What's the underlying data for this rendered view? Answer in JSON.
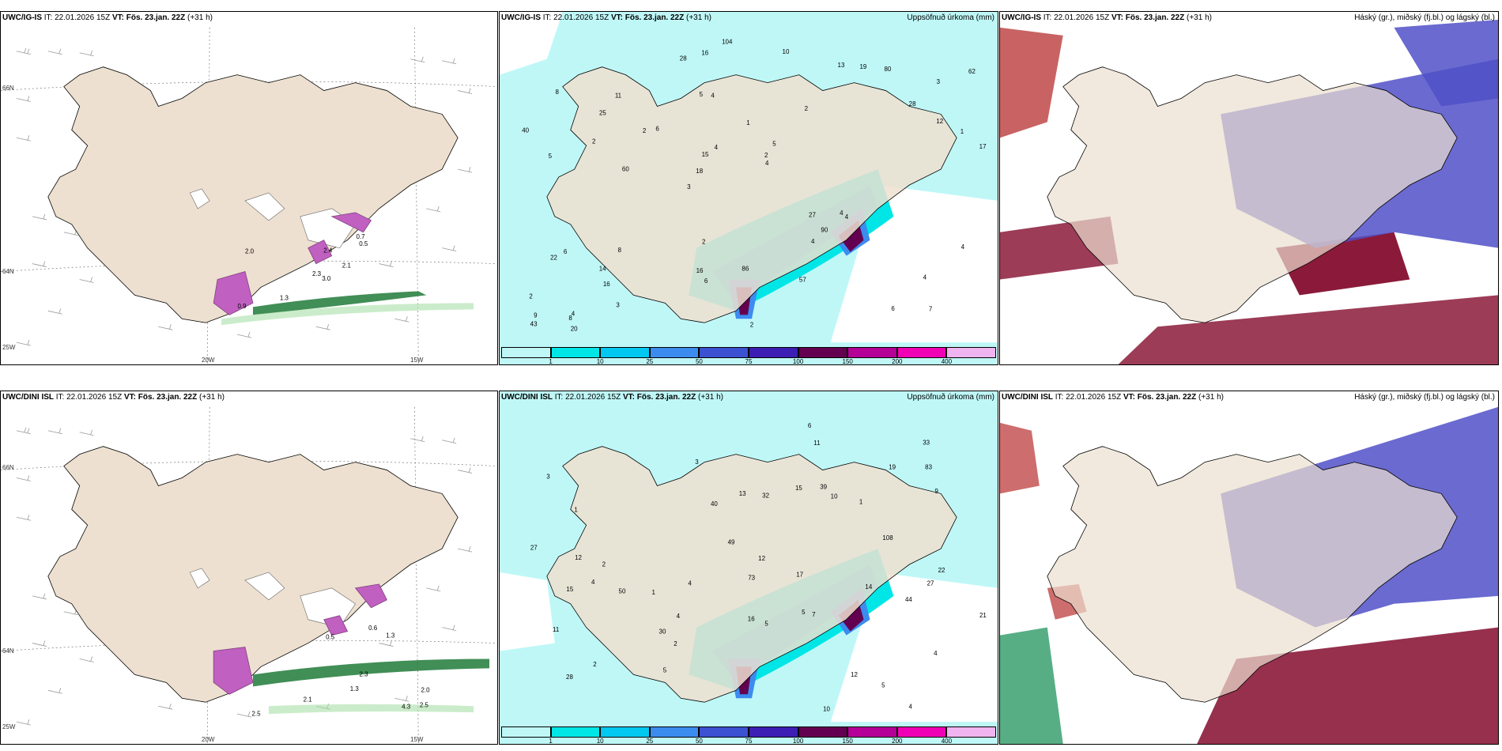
{
  "panels": {
    "top_left": {
      "model": "UWC/IG-IS",
      "it": "IT: 22.01.2026 15Z",
      "vt": "VT: Fös. 23.jan. 22Z",
      "lead": "(+31 h)",
      "axes": {
        "lat_top": "66N",
        "lat_bot": "64N",
        "lon_left": "25W",
        "lon_mid": "20W",
        "lon_right": "15W"
      }
    },
    "top_mid": {
      "model": "UWC/IG-IS",
      "it": "IT: 22.01.2026 15Z",
      "vt": "VT: Fös. 23.jan. 22Z",
      "lead": "(+31 h)",
      "right_label": "Uppsöfnuð úrkoma (mm)"
    },
    "top_right": {
      "model": "UWC/IG-IS",
      "it": "IT: 22.01.2026 15Z",
      "vt": "VT: Fös. 23.jan. 22Z",
      "lead": "(+31 h)",
      "right_label": "Háský (gr.), miðský (fj.bl.) og lágský (bl.)"
    },
    "bot_left": {
      "model": "UWC/DINI ISL",
      "it": "IT: 22.01.2026 15Z",
      "vt": "VT: Fös. 23.jan. 22Z",
      "lead": "(+31 h)",
      "axes": {
        "lat_top": "66N",
        "lat_bot": "64N",
        "lon_left": "25W",
        "lon_mid": "20W",
        "lon_right": "15W"
      }
    },
    "bot_mid": {
      "model": "UWC/DINI ISL",
      "it": "IT: 22.01.2026 15Z",
      "vt": "VT: Fös. 23.jan. 22Z",
      "lead": "(+31 h)",
      "right_label": "Uppsöfnuð úrkoma (mm)"
    },
    "bot_right": {
      "model": "UWC/DINI ISL",
      "it": "IT: 22.01.2026 15Z",
      "vt": "VT: Fös. 23.jan. 22Z",
      "lead": "(+31 h)",
      "right_label": "Háský (gr.), miðský (fj.bl.) og lágský (bl.)"
    }
  },
  "colorbar": {
    "ticks": [
      "1",
      "10",
      "25",
      "50",
      "75",
      "100",
      "150",
      "200",
      "400"
    ],
    "colors": [
      "#bff7f7",
      "#00e6e6",
      "#00c8f0",
      "#3c8cf0",
      "#3c50d2",
      "#3c1eb4",
      "#640050",
      "#b40096",
      "#f000b4",
      "#f0b4f0"
    ]
  },
  "precip_labels_top": [
    "7",
    "5",
    "3",
    "3",
    "2",
    "4",
    "5",
    "1",
    "6",
    "6",
    "2",
    "16",
    "4",
    "5",
    "4",
    "8",
    "16",
    "17",
    "27",
    "12",
    "18",
    "16",
    "15",
    "11",
    "13",
    "8",
    "6",
    "4",
    "4",
    "2",
    "2",
    "2",
    "4",
    "3",
    "1",
    "2",
    "9",
    "6",
    "4",
    "22",
    "28",
    "62",
    "90",
    "57",
    "14",
    "20",
    "43",
    "86",
    "80",
    "104",
    "60",
    "40",
    "25",
    "19",
    "8",
    "10",
    "28",
    "4",
    "4",
    "2"
  ],
  "precip_labels_bot": [
    "4",
    "4",
    "5",
    "3",
    "4",
    "1",
    "2",
    "1",
    "1",
    "13",
    "10",
    "5",
    "2",
    "3",
    "17",
    "11",
    "14",
    "12",
    "27",
    "28",
    "33",
    "32",
    "108",
    "21",
    "22",
    "12",
    "50",
    "73",
    "49",
    "83",
    "7",
    "15",
    "30",
    "39",
    "40",
    "44",
    "27",
    "12",
    "19",
    "10",
    "4",
    "5",
    "5",
    "6",
    "4",
    "2",
    "9",
    "11",
    "15",
    "16"
  ],
  "wind_labels_top": [
    "3.0",
    "2.0",
    "2.3",
    "0.9",
    "2.1",
    "1.3",
    "0.7",
    "2.4",
    "0.5"
  ],
  "wind_labels_bot": [
    "2.5",
    "2.0",
    "2.3",
    "1.3",
    "0.5",
    "0.6",
    "2.5",
    "1.3",
    "4.3",
    "2.1"
  ]
}
